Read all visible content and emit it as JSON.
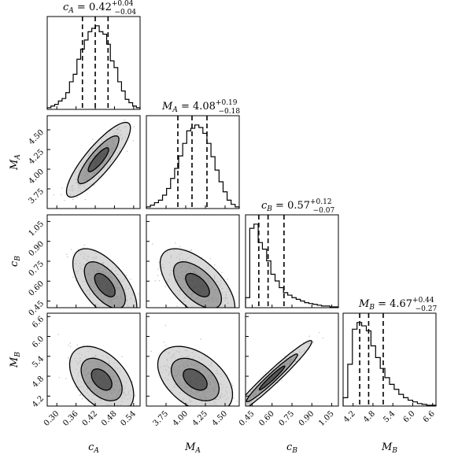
{
  "chart_data": {
    "type": "corner",
    "parameters": [
      {
        "key": "cA",
        "sym": "c",
        "sub": "A",
        "median": 0.42,
        "plus": "+0.04",
        "minus": "−0.04",
        "quantiles": [
          0.38,
          0.42,
          0.46
        ],
        "range": [
          0.27,
          0.56
        ],
        "ticks": [
          0.3,
          0.36,
          0.42,
          0.48,
          0.54
        ],
        "tick_labels": [
          "0.30",
          "0.36",
          "0.42",
          "0.48",
          "0.54"
        ],
        "hist": [
          0.02,
          0.04,
          0.06,
          0.1,
          0.13,
          0.2,
          0.33,
          0.42,
          0.6,
          0.72,
          0.83,
          0.93,
          0.97,
          1.0,
          0.93,
          0.9,
          0.78,
          0.58,
          0.5,
          0.33,
          0.22,
          0.12,
          0.08,
          0.04,
          0.02
        ]
      },
      {
        "key": "MA",
        "sym": "M",
        "sub": "A",
        "median": 4.08,
        "plus": "+0.19",
        "minus": "−0.18",
        "quantiles": [
          3.9,
          4.08,
          4.27
        ],
        "range": [
          3.5,
          4.68
        ],
        "ticks": [
          3.75,
          4.0,
          4.25,
          4.5
        ],
        "tick_labels": [
          "3.75",
          "4.00",
          "4.25",
          "4.50"
        ],
        "hist": [
          0.02,
          0.04,
          0.07,
          0.1,
          0.16,
          0.24,
          0.36,
          0.48,
          0.63,
          0.78,
          0.93,
          0.96,
          1.0,
          0.97,
          0.9,
          0.78,
          0.62,
          0.46,
          0.32,
          0.2,
          0.1,
          0.05,
          0.02
        ]
      },
      {
        "key": "cB",
        "sym": "c",
        "sub": "B",
        "median": 0.57,
        "plus": "+0.12",
        "minus": "−0.07",
        "quantiles": [
          0.5,
          0.57,
          0.69
        ],
        "range": [
          0.4,
          1.1
        ],
        "ticks": [
          0.45,
          0.6,
          0.75,
          0.9,
          1.05
        ],
        "tick_labels": [
          "0.45",
          "0.60",
          "0.75",
          "0.90",
          "1.05"
        ],
        "hist": [
          0.12,
          0.95,
          1.0,
          0.78,
          0.7,
          0.56,
          0.4,
          0.32,
          0.24,
          0.18,
          0.15,
          0.12,
          0.1,
          0.08,
          0.06,
          0.05,
          0.04,
          0.03,
          0.02,
          0.02,
          0.01,
          0.01
        ]
      },
      {
        "key": "MB",
        "sym": "M",
        "sub": "B",
        "median": 4.67,
        "plus": "+0.44",
        "minus": "−0.27",
        "quantiles": [
          4.4,
          4.67,
          5.11
        ],
        "range": [
          3.9,
          6.7
        ],
        "ticks": [
          4.2,
          4.8,
          5.4,
          6.0,
          6.6
        ],
        "tick_labels": [
          "4.2",
          "4.8",
          "5.4",
          "6.0",
          "6.6"
        ],
        "hist": [
          0.1,
          0.5,
          0.92,
          1.0,
          0.96,
          0.9,
          0.72,
          0.58,
          0.45,
          0.34,
          0.26,
          0.2,
          0.14,
          0.1,
          0.07,
          0.05,
          0.03,
          0.02,
          0.01,
          0.01
        ]
      }
    ],
    "pairs": [
      {
        "x": "cA",
        "y": "MA",
        "center": [
          0.43,
          4.12
        ],
        "sigma": [
          0.04,
          0.19
        ],
        "corr": 0.85
      },
      {
        "x": "cA",
        "y": "cB",
        "center": [
          0.45,
          0.57
        ],
        "sigma": [
          0.04,
          0.11
        ],
        "corr": -0.6
      },
      {
        "x": "MA",
        "y": "cB",
        "center": [
          4.15,
          0.57
        ],
        "sigma": [
          0.19,
          0.11
        ],
        "corr": -0.6
      },
      {
        "x": "cA",
        "y": "MB",
        "center": [
          0.44,
          4.7
        ],
        "sigma": [
          0.04,
          0.4
        ],
        "corr": -0.45
      },
      {
        "x": "MA",
        "y": "MB",
        "center": [
          4.12,
          4.7
        ],
        "sigma": [
          0.19,
          0.4
        ],
        "corr": -0.45
      },
      {
        "x": "cB",
        "y": "MB",
        "center": [
          0.6,
          4.75
        ],
        "sigma": [
          0.12,
          0.45
        ],
        "corr": 0.97
      }
    ],
    "colors": {
      "line": "#000000",
      "points": "#888888",
      "fill_dark": "#222222",
      "fill_mid": "#777777",
      "fill_light": "#bbbbbb"
    }
  }
}
